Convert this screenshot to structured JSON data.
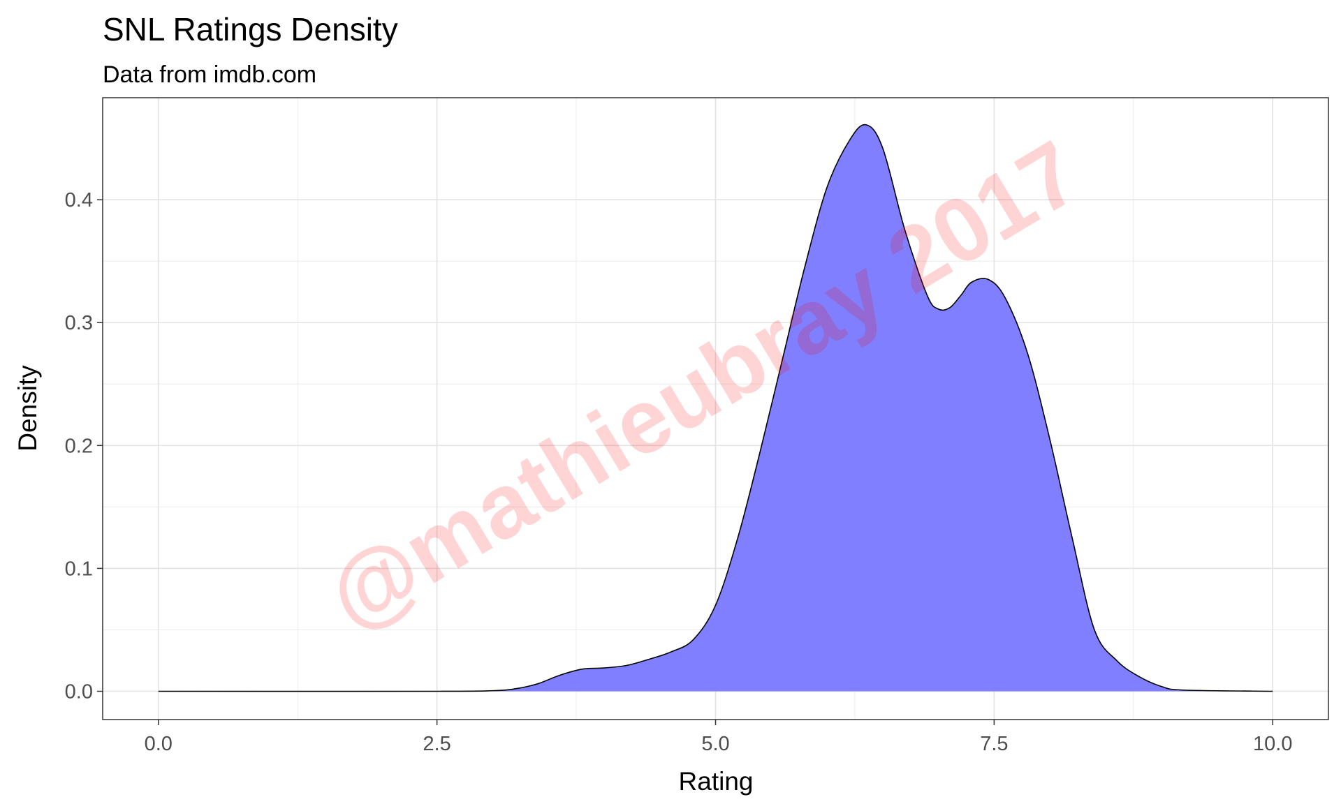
{
  "chart_data": {
    "type": "area",
    "title": "SNL Ratings Density",
    "subtitle": "Data from imdb.com",
    "xlabel": "Rating",
    "ylabel": "Density",
    "xlim": [
      -0.5,
      10.5
    ],
    "ylim": [
      -0.023,
      0.483
    ],
    "x_ticks": [
      {
        "value": 0,
        "label": "0.0"
      },
      {
        "value": 2.5,
        "label": "2.5"
      },
      {
        "value": 5,
        "label": "5.0"
      },
      {
        "value": 7.5,
        "label": "7.5"
      },
      {
        "value": 10,
        "label": "10.0"
      }
    ],
    "y_ticks": [
      {
        "value": 0,
        "label": "0.0"
      },
      {
        "value": 0.1,
        "label": "0.1"
      },
      {
        "value": 0.2,
        "label": "0.2"
      },
      {
        "value": 0.3,
        "label": "0.3"
      },
      {
        "value": 0.4,
        "label": "0.4"
      }
    ],
    "grid": true,
    "legend": "none",
    "series": [
      {
        "fill": "#7f7fff",
        "stroke": "#000000",
        "x": [
          0,
          2.5,
          3.0,
          3.2,
          3.4,
          3.6,
          3.8,
          4.0,
          4.2,
          4.4,
          4.6,
          4.8,
          5.0,
          5.2,
          5.4,
          5.6,
          5.8,
          6.0,
          6.2,
          6.35,
          6.5,
          6.7,
          6.9,
          7.0,
          7.1,
          7.2,
          7.3,
          7.45,
          7.6,
          7.8,
          8.0,
          8.2,
          8.4,
          8.6,
          8.8,
          9.0,
          9.2,
          10.0
        ],
        "y": [
          0,
          0,
          0.0005,
          0.002,
          0.006,
          0.013,
          0.018,
          0.019,
          0.021,
          0.026,
          0.032,
          0.042,
          0.07,
          0.125,
          0.195,
          0.27,
          0.345,
          0.41,
          0.448,
          0.461,
          0.442,
          0.375,
          0.322,
          0.311,
          0.312,
          0.322,
          0.333,
          0.335,
          0.32,
          0.275,
          0.205,
          0.125,
          0.05,
          0.025,
          0.012,
          0.004,
          0.001,
          0
        ]
      }
    ]
  },
  "watermark": "@mathieubray 2017"
}
